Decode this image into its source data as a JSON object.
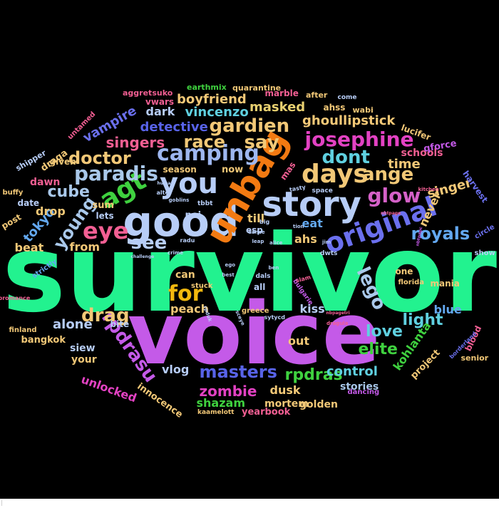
{
  "title": "",
  "background": "#000000",
  "words": [
    {
      "text": "survivor",
      "color": "#22f28f"
    },
    {
      "text": "voice",
      "color": "#c45ae8"
    },
    {
      "text": "good",
      "color": "#b7cdf7"
    },
    {
      "text": "unbag",
      "color": "#f27a12"
    },
    {
      "text": "story",
      "color": "#b7cdf7"
    },
    {
      "text": "original",
      "color": "#6b70ee"
    },
    {
      "text": "you",
      "color": "#b7cdf7"
    },
    {
      "text": "agt",
      "color": "#3fd13f"
    },
    {
      "text": "days",
      "color": "#f2c877"
    },
    {
      "text": "camping",
      "color": "#9eb7f0"
    },
    {
      "text": "eye",
      "color": "#f25f93"
    },
    {
      "text": "paradis",
      "color": "#a9c8ea"
    },
    {
      "text": "gardien",
      "color": "#f2c877"
    },
    {
      "text": "josephine",
      "color": "#e342c3"
    },
    {
      "text": "for",
      "color": "#f2b80e"
    },
    {
      "text": "dont",
      "color": "#5fd0e0"
    },
    {
      "text": "glow",
      "color": "#d561c8"
    },
    {
      "text": "lego",
      "color": "#a9c8ea"
    },
    {
      "text": "rpdrasu",
      "color": "#c45ae8"
    },
    {
      "text": "masters",
      "color": "#5863e8"
    },
    {
      "text": "royals",
      "color": "#63a8f0"
    },
    {
      "text": "young",
      "color": "#a9c8ea"
    },
    {
      "text": "say",
      "color": "#f2c877"
    },
    {
      "text": "race",
      "color": "#f2c877"
    },
    {
      "text": "drag",
      "color": "#f2c877"
    },
    {
      "text": "see",
      "color": "#b7cdf7"
    },
    {
      "text": "doctor",
      "color": "#f2c877"
    },
    {
      "text": "ange",
      "color": "#f2c877"
    },
    {
      "text": "zombie",
      "color": "#e342c3"
    },
    {
      "text": "rpdras",
      "color": "#3fd13f"
    },
    {
      "text": "elite",
      "color": "#3fd13f"
    },
    {
      "text": "love",
      "color": "#5fd0e0"
    },
    {
      "text": "light",
      "color": "#5fd0e0"
    },
    {
      "text": "singers",
      "color": "#f25f93"
    },
    {
      "text": "detective",
      "color": "#5863e8"
    },
    {
      "text": "boyfriend",
      "color": "#f2c877"
    },
    {
      "text": "vincenzo",
      "color": "#5fd0e0"
    },
    {
      "text": "ghoullipstick",
      "color": "#f2c877"
    },
    {
      "text": "masked",
      "color": "#e8d070"
    },
    {
      "text": "vampire",
      "color": "#6b70ee"
    },
    {
      "text": "cube",
      "color": "#a9c8ea"
    },
    {
      "text": "singer",
      "color": "#f2c877"
    },
    {
      "text": "control",
      "color": "#5fd0e0"
    },
    {
      "text": "kohlanta",
      "color": "#3fd13f"
    },
    {
      "text": "tokyo",
      "color": "#63a8f0"
    },
    {
      "text": "dusk",
      "color": "#f2c877"
    },
    {
      "text": "time",
      "color": "#f2c877"
    },
    {
      "text": "never",
      "color": "#f2c877"
    },
    {
      "text": "blue",
      "color": "#63a8f0"
    },
    {
      "text": "shazam",
      "color": "#3fd13f"
    },
    {
      "text": "unlocked",
      "color": "#e342c3"
    },
    {
      "text": "alone",
      "color": "#b7cdf7"
    },
    {
      "text": "vlog",
      "color": "#b7cdf7"
    },
    {
      "text": "peach",
      "color": "#f2c877"
    },
    {
      "text": "kiss",
      "color": "#b7cdf7"
    },
    {
      "text": "dark",
      "color": "#b7cdf7"
    },
    {
      "text": "till",
      "color": "#f2c877"
    },
    {
      "text": "drop",
      "color": "#f2c877"
    },
    {
      "text": "from",
      "color": "#f2c877"
    },
    {
      "text": "beat",
      "color": "#f2c877"
    },
    {
      "text": "eat",
      "color": "#63a8f0"
    },
    {
      "text": "ahs",
      "color": "#f2c877"
    },
    {
      "text": "can",
      "color": "#f2c877"
    },
    {
      "text": "out",
      "color": "#f2c877"
    },
    {
      "text": "stories",
      "color": "#a9c8ea"
    },
    {
      "text": "mortem",
      "color": "#f2c877"
    },
    {
      "text": "golden",
      "color": "#f2c877"
    },
    {
      "text": "yearbook",
      "color": "#f25f93"
    },
    {
      "text": "innocence",
      "color": "#f2c877"
    },
    {
      "text": "bangkok",
      "color": "#f2c877"
    },
    {
      "text": "siew",
      "color": "#b7cdf7"
    },
    {
      "text": "your",
      "color": "#f2c877"
    },
    {
      "text": "bite",
      "color": "#b7cdf7"
    },
    {
      "text": "project",
      "color": "#f2c877"
    },
    {
      "text": "blood",
      "color": "#f25f93"
    },
    {
      "text": "senior",
      "color": "#f2c877"
    },
    {
      "text": "mania",
      "color": "#f2c877"
    },
    {
      "text": "schools",
      "color": "#f25f93"
    },
    {
      "text": "qforce",
      "color": "#c45ae8"
    },
    {
      "text": "lucifer",
      "color": "#f2c877"
    },
    {
      "text": "harvest",
      "color": "#6b70ee"
    },
    {
      "text": "sum",
      "color": "#f2c877"
    },
    {
      "text": "lets",
      "color": "#b7cdf7"
    },
    {
      "text": "noi",
      "color": "#b7cdf7"
    },
    {
      "text": "now",
      "color": "#f2c877"
    },
    {
      "text": "season",
      "color": "#f2c877"
    },
    {
      "text": "dawn",
      "color": "#f25f93"
    },
    {
      "text": "draga",
      "color": "#f2c877"
    },
    {
      "text": "given",
      "color": "#f2c877"
    },
    {
      "text": "date",
      "color": "#b7cdf7"
    },
    {
      "text": "post",
      "color": "#f2c877"
    },
    {
      "text": "shipper",
      "color": "#b7cdf7"
    },
    {
      "text": "buffy",
      "color": "#f2c877"
    },
    {
      "text": "untamed",
      "color": "#f25f93"
    },
    {
      "text": "aggretsuko",
      "color": "#f25f93"
    },
    {
      "text": "vwars",
      "color": "#f25f93"
    },
    {
      "text": "earthmix",
      "color": "#3fd13f"
    },
    {
      "text": "quarantine",
      "color": "#f2c877"
    },
    {
      "text": "marble",
      "color": "#f25f93"
    },
    {
      "text": "after",
      "color": "#f2c877"
    },
    {
      "text": "ahss",
      "color": "#f2c877"
    },
    {
      "text": "come",
      "color": "#b7cdf7"
    },
    {
      "text": "wabi",
      "color": "#f2c877"
    },
    {
      "text": "mas",
      "color": "#f25f93"
    },
    {
      "text": "esp",
      "color": "#b7cdf7"
    },
    {
      "text": "all",
      "color": "#b7cdf7"
    },
    {
      "text": "one",
      "color": "#f2c877"
    },
    {
      "text": "strictly",
      "color": "#63a8f0"
    },
    {
      "text": "stuck",
      "color": "#f2c877"
    },
    {
      "text": "greece",
      "color": "#f2c877"
    },
    {
      "text": "sytycd",
      "color": "#b7cdf7"
    },
    {
      "text": "finland",
      "color": "#f2c877"
    },
    {
      "text": "florida",
      "color": "#f2c877"
    },
    {
      "text": "bulgarie",
      "color": "#c45ae8"
    },
    {
      "text": "slam",
      "color": "#f25f93"
    },
    {
      "text": "dals",
      "color": "#b7cdf7"
    },
    {
      "text": "dwts",
      "color": "#b7cdf7"
    },
    {
      "text": "dancing",
      "color": "#c45ae8"
    },
    {
      "text": "kaamelott",
      "color": "#f2c877"
    },
    {
      "text": "show",
      "color": "#b7cdf7"
    },
    {
      "text": "circle",
      "color": "#6b70ee"
    },
    {
      "text": "borderland",
      "color": "#6b70ee"
    },
    {
      "text": "bromance",
      "color": "#f25f93"
    },
    {
      "text": "tbbt",
      "color": "#b7cdf7"
    },
    {
      "text": "space",
      "color": "#b7cdf7"
    },
    {
      "text": "tasty",
      "color": "#b7cdf7"
    },
    {
      "text": "alter",
      "color": "#b7cdf7"
    },
    {
      "text": "leap",
      "color": "#b7cdf7"
    },
    {
      "text": "alice",
      "color": "#b7cdf7"
    },
    {
      "text": "dance",
      "color": "#b7cdf7"
    },
    {
      "text": "big",
      "color": "#b7cdf7"
    },
    {
      "text": "tion",
      "color": "#b7cdf7"
    },
    {
      "text": "jim",
      "color": "#b7cdf7"
    },
    {
      "text": "ego",
      "color": "#b7cdf7"
    },
    {
      "text": "best",
      "color": "#b7cdf7"
    },
    {
      "text": "ben",
      "color": "#b7cdf7"
    },
    {
      "text": "kitchen",
      "color": "#f25f93"
    },
    {
      "text": "goblins",
      "color": "#b7cdf7"
    },
    {
      "text": "crime",
      "color": "#b7cdf7"
    },
    {
      "text": "nbtpage",
      "color": "#f25f93"
    },
    {
      "text": "nbtpapc",
      "color": "#c45ae8"
    },
    {
      "text": "nbpagetri",
      "color": "#f25f93"
    },
    {
      "text": "dragula",
      "color": "#f25f93"
    },
    {
      "text": "sceye",
      "color": "#b7cdf7"
    },
    {
      "text": "rpduk",
      "color": "#b7cdf7"
    },
    {
      "text": "challenge",
      "color": "#b7cdf7"
    },
    {
      "text": "human",
      "color": "#b7cdf7"
    },
    {
      "text": "radu",
      "color": "#b7cdf7"
    }
  ]
}
